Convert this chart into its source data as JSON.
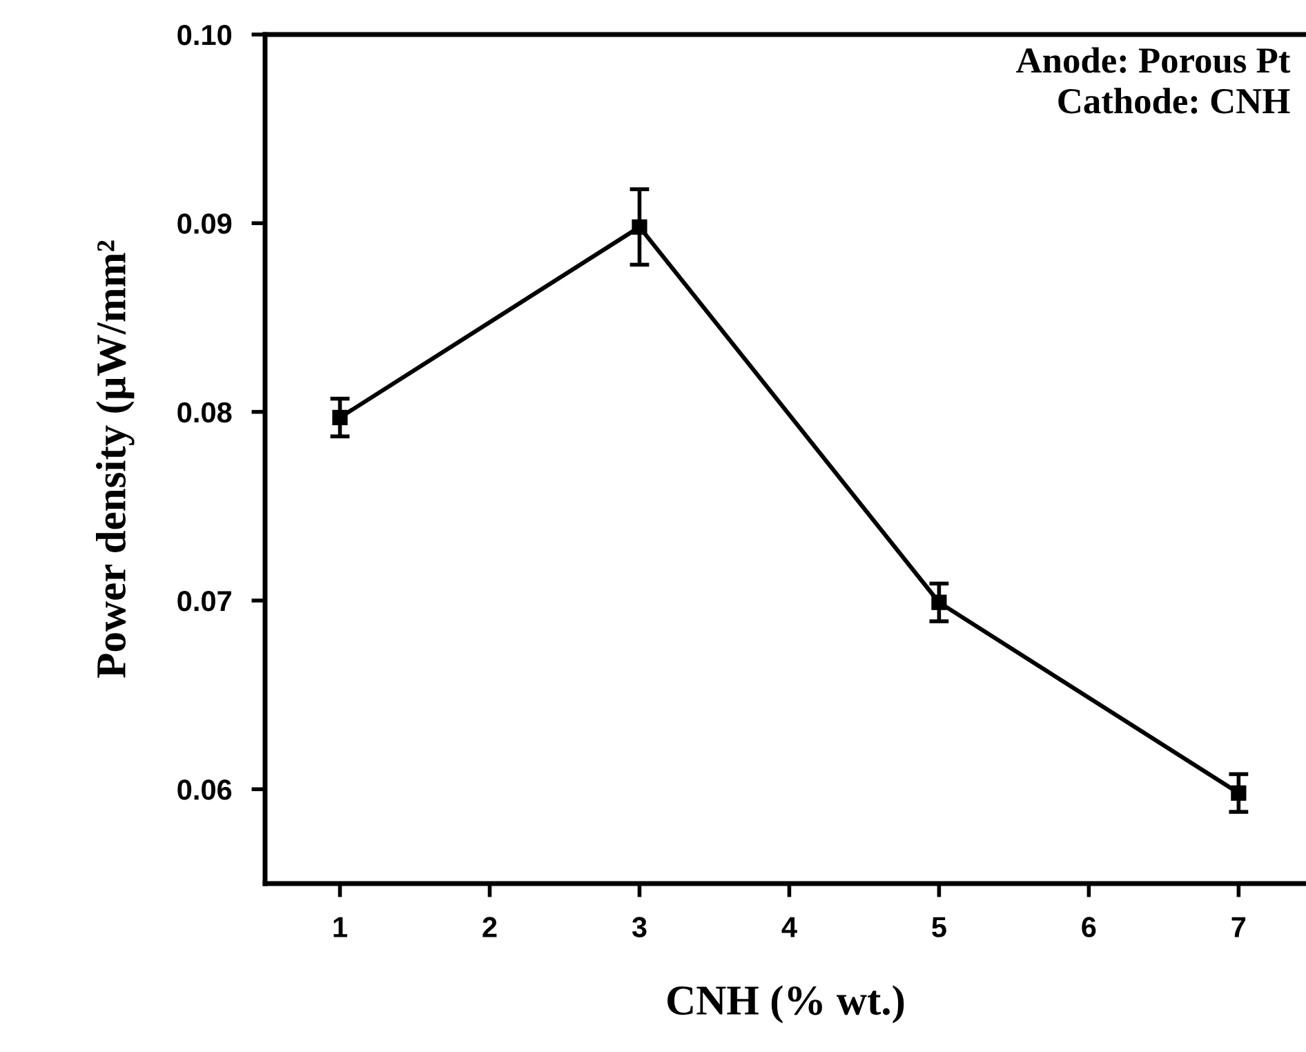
{
  "chart_data": {
    "type": "line",
    "xlabel": "CNH (% wt.)",
    "ylabel": "Power density (μW/mm²",
    "x": [
      1,
      3,
      5,
      7
    ],
    "series": [
      {
        "color": "#000000",
        "values": [
          0.0797,
          0.0898,
          0.0699,
          0.0598
        ],
        "errors": [
          0.001,
          0.002,
          0.001,
          0.001
        ]
      }
    ],
    "xlim": [
      0.5,
      7.45
    ],
    "xticks": [
      1,
      2,
      3,
      4,
      5,
      6,
      7
    ],
    "ylim": [
      0.055,
      0.1
    ],
    "yticks": [
      {
        "value": 0.06,
        "label": "0.06"
      },
      {
        "value": 0.07,
        "label": "0.07"
      },
      {
        "value": 0.08,
        "label": "0.08"
      },
      {
        "value": 0.09,
        "label": "0.09"
      },
      {
        "value": 0.1,
        "label": "0.10"
      }
    ],
    "annotations": [
      "Anode: Porous Pt\nCathode: CNH"
    ],
    "marker": "square",
    "line_style": "solid",
    "grid": false,
    "legend": false
  }
}
